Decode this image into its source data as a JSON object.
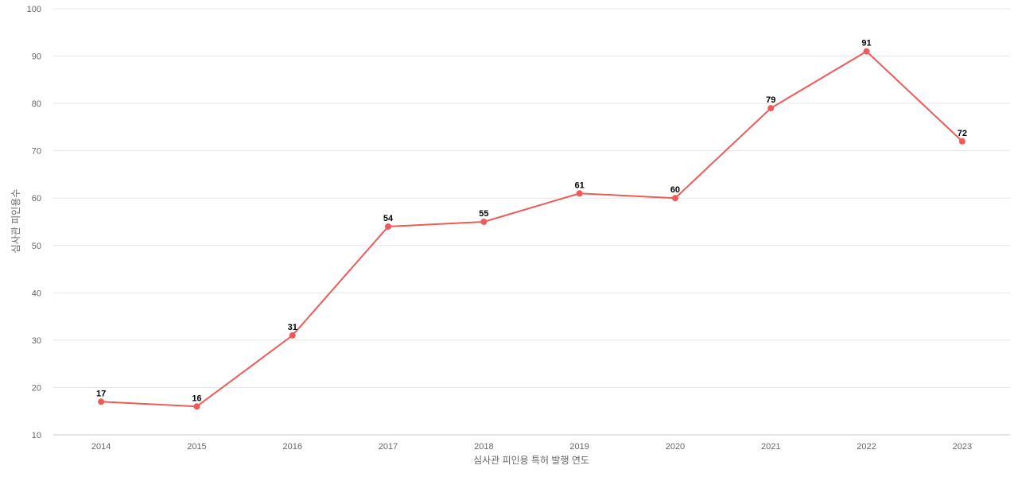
{
  "chart_data": {
    "type": "line",
    "title": "",
    "xlabel": "심사관 피인용 특허 발행 연도",
    "ylabel": "심사관 피인용수",
    "ylim": [
      10,
      100
    ],
    "y_ticks": [
      10,
      20,
      30,
      40,
      50,
      60,
      70,
      80,
      90,
      100
    ],
    "categories": [
      "2014",
      "2015",
      "2016",
      "2017",
      "2018",
      "2019",
      "2020",
      "2021",
      "2022",
      "2023"
    ],
    "series": [
      {
        "values": [
          17,
          16,
          31,
          54,
          55,
          61,
          60,
          79,
          91,
          72
        ],
        "color": "#ee5a58"
      }
    ],
    "grid": true,
    "legend": "none",
    "data_labels": true
  }
}
